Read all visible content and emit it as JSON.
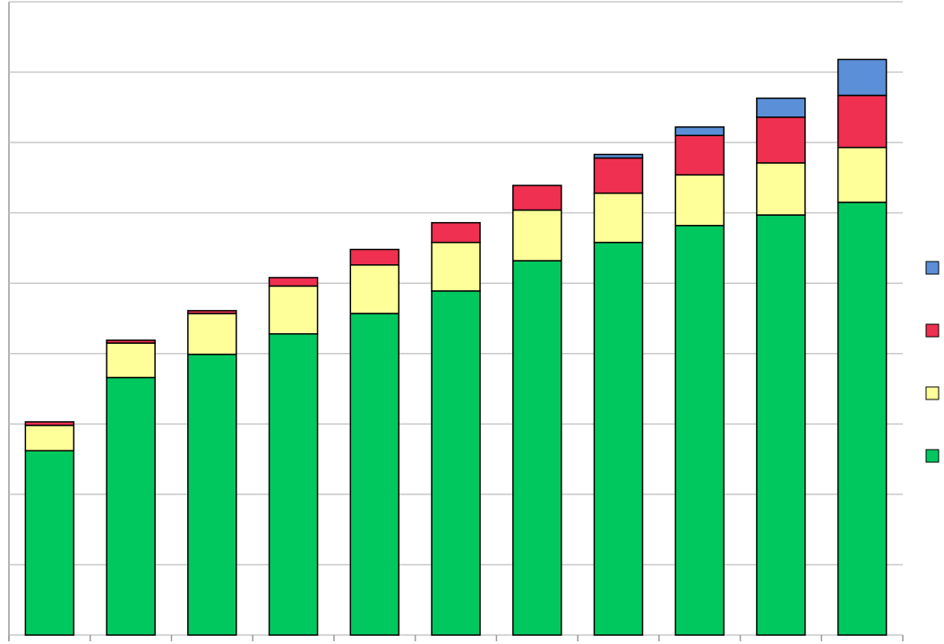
{
  "chart_data": {
    "type": "stacked_bar",
    "categories": [
      null,
      null,
      null,
      null,
      null,
      null,
      null,
      null,
      null,
      null,
      null
    ],
    "series": [
      {
        "color": "#00c85f",
        "values": [
          2.62,
          3.66,
          3.99,
          4.28,
          4.57,
          4.89,
          5.32,
          5.58,
          5.82,
          5.97,
          6.15
        ]
      },
      {
        "color": "#ffff99",
        "values": [
          0.36,
          0.49,
          0.58,
          0.68,
          0.69,
          0.69,
          0.72,
          0.7,
          0.72,
          0.74,
          0.78
        ]
      },
      {
        "color": "#f03050",
        "values": [
          0.05,
          0.04,
          0.04,
          0.12,
          0.22,
          0.28,
          0.35,
          0.5,
          0.56,
          0.65,
          0.74
        ]
      },
      {
        "color": "#5b8fd8",
        "values": [
          0,
          0,
          0,
          0,
          0,
          0,
          0,
          0.05,
          0.12,
          0.27,
          0.51
        ]
      }
    ],
    "ylim": [
      0,
      9
    ],
    "yticks": [
      0,
      1,
      2,
      3,
      4,
      5,
      6,
      7,
      8,
      9
    ],
    "grid": true,
    "legend": "right"
  }
}
